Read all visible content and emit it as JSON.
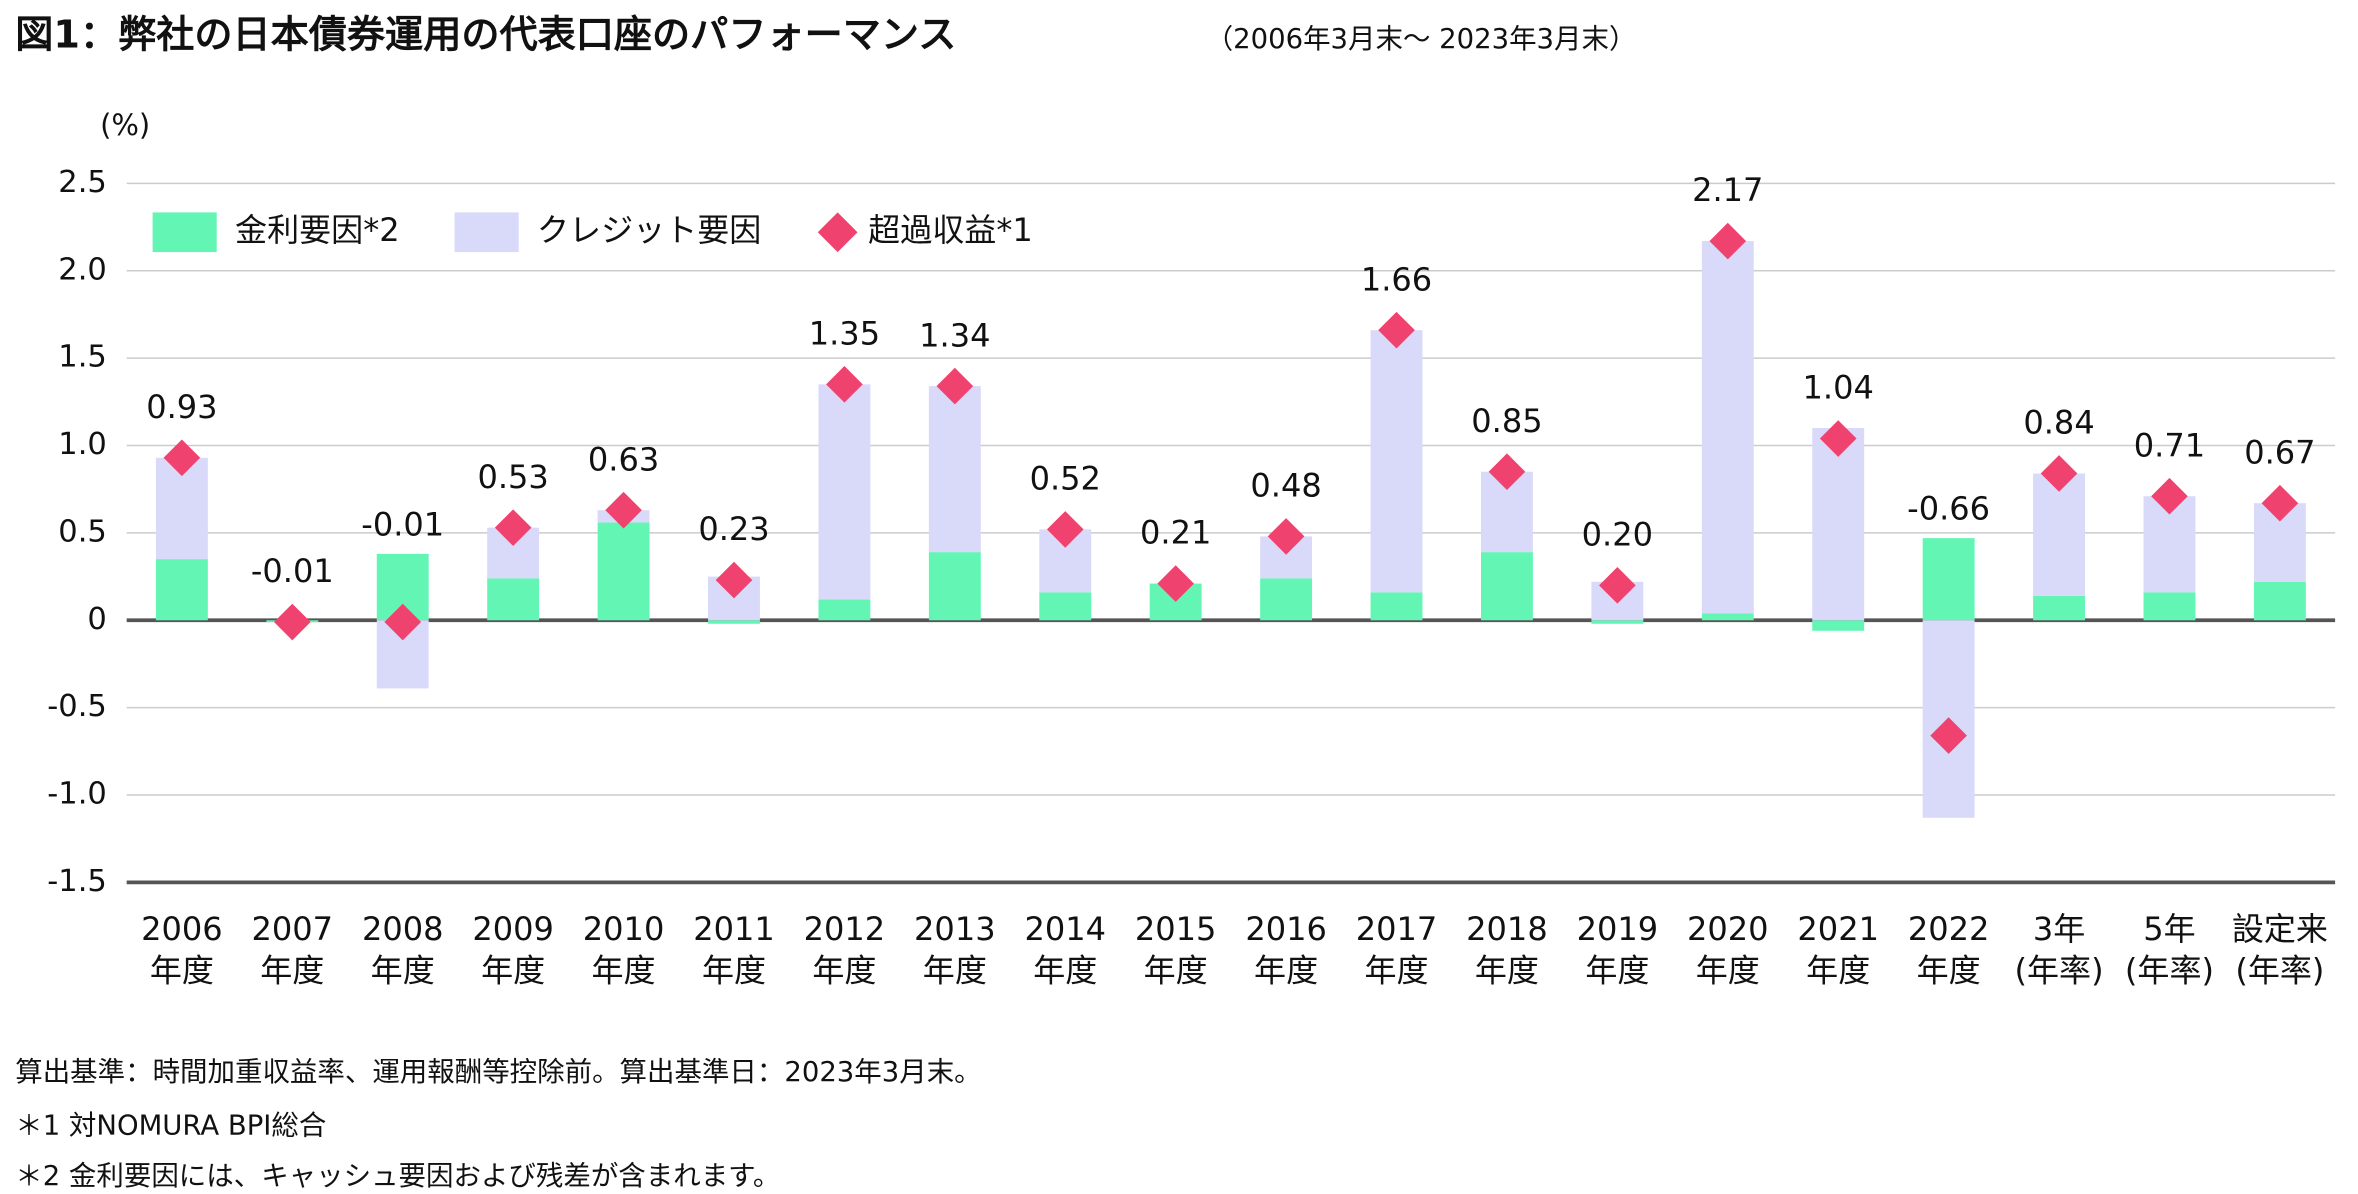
{
  "chart_data": {
    "type": "bar",
    "title": "図1：弊社の日本債券運用の代表口座のパフォーマンス",
    "subtitle": "（2006年3月末～ 2023年3月末）",
    "y_label": "(%)",
    "categories": [
      [
        "2006",
        "年度"
      ],
      [
        "2007",
        "年度"
      ],
      [
        "2008",
        "年度"
      ],
      [
        "2009",
        "年度"
      ],
      [
        "2010",
        "年度"
      ],
      [
        "2011",
        "年度"
      ],
      [
        "2012",
        "年度"
      ],
      [
        "2013",
        "年度"
      ],
      [
        "2014",
        "年度"
      ],
      [
        "2015",
        "年度"
      ],
      [
        "2016",
        "年度"
      ],
      [
        "2017",
        "年度"
      ],
      [
        "2018",
        "年度"
      ],
      [
        "2019",
        "年度"
      ],
      [
        "2020",
        "年度"
      ],
      [
        "2021",
        "年度"
      ],
      [
        "2022",
        "年度"
      ],
      [
        "3年",
        "(年率)"
      ],
      [
        "5年",
        "(年率)"
      ],
      [
        "設定来",
        "(年率)"
      ]
    ],
    "series": [
      {
        "name": "金利要因*2",
        "color": "#63f5b4",
        "stacked": true,
        "values": [
          0.35,
          -0.01,
          0.38,
          0.24,
          0.56,
          -0.02,
          0.12,
          0.39,
          0.16,
          0.21,
          0.24,
          0.16,
          0.39,
          -0.02,
          0.04,
          -0.06,
          0.47,
          0.14,
          0.16,
          0.22
        ]
      },
      {
        "name": "クレジット要因",
        "color": "#d9d9fa",
        "stacked": true,
        "values": [
          0.58,
          0,
          -0.39,
          0.29,
          0.07,
          0.25,
          1.23,
          0.95,
          0.36,
          0,
          0.24,
          1.5,
          0.46,
          0.22,
          2.13,
          1.1,
          -1.13,
          0.7,
          0.55,
          0.45
        ]
      },
      {
        "name": "超過収益*1",
        "color": "#f0426e",
        "marker": "diamond",
        "values": [
          0.93,
          -0.01,
          -0.01,
          0.53,
          0.63,
          0.23,
          1.35,
          1.34,
          0.52,
          0.21,
          0.48,
          1.66,
          0.85,
          0.2,
          2.17,
          1.04,
          -0.66,
          0.84,
          0.71,
          0.67
        ],
        "value_labels": [
          "0.93",
          "-0.01",
          "-0.01",
          "0.53",
          "0.63",
          "0.23",
          "1.35",
          "1.34",
          "0.52",
          "0.21",
          "0.48",
          "1.66",
          "0.85",
          "0.20",
          "2.17",
          "1.04",
          "-0.66",
          "0.84",
          "0.71",
          "0.67"
        ]
      }
    ],
    "ylim": [
      -1.5,
      2.5
    ],
    "yticks": [
      2.5,
      {
        "value": 2,
        "label": "2.0"
      },
      1.5,
      {
        "value": 1,
        "label": "1.0"
      },
      0.5,
      0,
      -0.5,
      {
        "value": -1,
        "label": "-1.0"
      },
      -1.5
    ],
    "grid": true,
    "legend": "top-left",
    "notes": [
      "算出基準：時間加重収益率、運用報酬等控除前。算出基準日：2023年3月末。",
      "＊1 対NOMURA BPI総合",
      "＊2 金利要因には、キャッシュ要因および残差が含まれます。"
    ]
  }
}
